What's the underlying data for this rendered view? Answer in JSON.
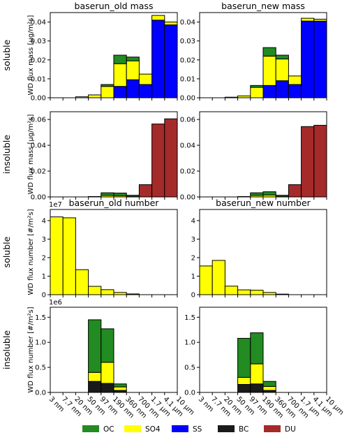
{
  "chart_data": {
    "type": "bar",
    "stacked": true,
    "x_tick_labels": [
      "3 nm",
      "7.7 nm",
      "20 nm",
      "50 nm",
      "97 nm",
      "190 nm",
      "360 nm",
      "700 nm",
      "1.7 μm",
      "4.1 μm",
      "10 μm"
    ],
    "colors": {
      "OC": "#228B22",
      "SO4": "#FFFF00",
      "SS": "#0000FF",
      "BC": "#1a1a1a",
      "DU": "#A52A2A"
    },
    "legend": [
      "OC",
      "SO4",
      "SS",
      "BC",
      "DU"
    ],
    "row_labels": [
      "soluble",
      "insoluble",
      "soluble",
      "insoluble"
    ],
    "panels": [
      {
        "id": "mass-sol-old",
        "title": "baserun_old mass",
        "row": 0,
        "col": 0,
        "ylabel": "WD flux mass [μg/m²s]",
        "ylim": [
          0,
          0.045
        ],
        "yticks": [
          0,
          0.01,
          0.02,
          0.03,
          0.04
        ],
        "yticklabels": [
          "0.00",
          "0.01",
          "0.02",
          "0.03",
          "0.04"
        ],
        "exponent": "",
        "order": [
          "SS",
          "SO4",
          "OC"
        ],
        "series": {
          "SS": [
            0,
            0,
            0,
            0,
            0,
            0.006,
            0.0095,
            0.007,
            0.041,
            0.0385
          ],
          "SO4": [
            0,
            0,
            0.0005,
            0.0015,
            0.006,
            0.012,
            0.01,
            0.0055,
            0.0025,
            0.0015
          ],
          "OC": [
            0,
            0,
            0,
            0,
            0.001,
            0.0045,
            0.002,
            0,
            0,
            0
          ]
        }
      },
      {
        "id": "mass-sol-new",
        "title": "baserun_new mass",
        "row": 0,
        "col": 1,
        "ylabel": "",
        "ylim": [
          0,
          0.045
        ],
        "yticks": [
          0,
          0.01,
          0.02,
          0.03,
          0.04
        ],
        "yticklabels": [
          "0.00",
          "0.01",
          "0.02",
          "0.03",
          "0.04"
        ],
        "exponent": "",
        "order": [
          "SS",
          "SO4",
          "OC"
        ],
        "series": {
          "SS": [
            0,
            0,
            0,
            0,
            0,
            0.0065,
            0.009,
            0.007,
            0.0405,
            0.0405
          ],
          "SO4": [
            0,
            0,
            0.0003,
            0.001,
            0.0055,
            0.0155,
            0.0115,
            0.0045,
            0.0015,
            0.001
          ],
          "OC": [
            0,
            0,
            0,
            0,
            0.001,
            0.0045,
            0.002,
            0,
            0,
            0
          ]
        }
      },
      {
        "id": "mass-ins-old",
        "title": "",
        "row": 1,
        "col": 0,
        "ylabel": "WD flux mass [μg/m²s]",
        "ylim": [
          0,
          0.066
        ],
        "yticks": [
          0,
          0.02,
          0.04,
          0.06
        ],
        "yticklabels": [
          "0.00",
          "0.02",
          "0.04",
          "0.06"
        ],
        "exponent": "",
        "order": [
          "BC",
          "SO4",
          "OC",
          "DU"
        ],
        "series": {
          "BC": [
            0,
            0,
            0,
            0,
            0,
            0,
            0,
            0,
            0,
            0
          ],
          "SO4": [
            0,
            0,
            0,
            0.0003,
            0.0012,
            0.001,
            0.0003,
            0,
            0,
            0
          ],
          "OC": [
            0,
            0,
            0,
            0,
            0.002,
            0.002,
            0.001,
            0,
            0,
            0
          ],
          "DU": [
            0,
            0,
            0,
            0,
            0,
            0,
            0,
            0.0095,
            0.0565,
            0.0605
          ]
        }
      },
      {
        "id": "mass-ins-new",
        "title": "",
        "row": 1,
        "col": 1,
        "ylabel": "",
        "ylim": [
          0,
          0.066
        ],
        "yticks": [
          0,
          0.02,
          0.04,
          0.06
        ],
        "yticklabels": [
          "0.00",
          "0.02",
          "0.04",
          "0.06"
        ],
        "exponent": "",
        "order": [
          "BC",
          "SO4",
          "OC",
          "DU"
        ],
        "series": {
          "BC": [
            0,
            0,
            0,
            0,
            0,
            0,
            0,
            0,
            0,
            0
          ],
          "SO4": [
            0,
            0,
            0,
            0.0003,
            0.0012,
            0.0015,
            0.0003,
            0,
            0,
            0
          ],
          "OC": [
            0,
            0,
            0,
            0,
            0.002,
            0.0025,
            0.001,
            0,
            0,
            0
          ],
          "DU": [
            0,
            0,
            0,
            0,
            0,
            0,
            0,
            0.0095,
            0.0545,
            0.0555
          ]
        }
      },
      {
        "id": "num-sol-old",
        "title": "baserun_old number",
        "row": 2,
        "col": 0,
        "ylabel": "WD flux number [#/m²s]",
        "ylim": [
          0,
          46000000
        ],
        "yticks": [
          0,
          10000000,
          20000000,
          30000000,
          40000000
        ],
        "yticklabels": [
          "0",
          "1",
          "2",
          "3",
          "4"
        ],
        "exponent": "1e7",
        "order": [
          "SO4"
        ],
        "series": {
          "SO4": [
            42000000,
            41500000,
            13500000,
            4500000,
            2700000,
            1200000,
            400000,
            0,
            0,
            0
          ]
        }
      },
      {
        "id": "num-sol-new",
        "title": "baserun_new number",
        "row": 2,
        "col": 1,
        "ylabel": "",
        "ylim": [
          0,
          46000000
        ],
        "yticks": [
          0,
          10000000,
          20000000,
          30000000,
          40000000
        ],
        "yticklabels": [
          "0",
          "1",
          "2",
          "3",
          "4"
        ],
        "exponent": "",
        "order": [
          "SO4"
        ],
        "series": {
          "SO4": [
            15500000,
            18500000,
            4600000,
            2600000,
            2400000,
            1200000,
            300000,
            0,
            0,
            0
          ]
        }
      },
      {
        "id": "num-ins-old",
        "title": "",
        "row": 3,
        "col": 0,
        "ylabel": "WD flux number [#/m²s]",
        "ylim": [
          0,
          1700000
        ],
        "yticks": [
          0,
          500000,
          1000000,
          1500000
        ],
        "yticklabels": [
          "0.0",
          "0.5",
          "1.0",
          "1.5"
        ],
        "exponent": "1e6",
        "order": [
          "BC",
          "SO4",
          "OC"
        ],
        "series": {
          "BC": [
            0,
            0,
            0,
            220000,
            180000,
            40000,
            0,
            0,
            0,
            0
          ],
          "SO4": [
            0,
            0,
            0,
            180000,
            420000,
            70000,
            0,
            0,
            0,
            0
          ],
          "OC": [
            0,
            0,
            0,
            1050000,
            670000,
            60000,
            0,
            0,
            0,
            0
          ]
        }
      },
      {
        "id": "num-ins-new",
        "title": "",
        "row": 3,
        "col": 1,
        "ylabel": "",
        "ylim": [
          0,
          1700000
        ],
        "yticks": [
          0,
          500000,
          1000000,
          1500000
        ],
        "yticklabels": [
          "0.0",
          "0.5",
          "1.0",
          "1.5"
        ],
        "exponent": "",
        "order": [
          "BC",
          "SO4",
          "OC"
        ],
        "series": {
          "BC": [
            0,
            0,
            0,
            160000,
            170000,
            40000,
            0,
            0,
            0,
            0
          ],
          "SO4": [
            0,
            0,
            0,
            140000,
            400000,
            80000,
            0,
            0,
            0,
            0
          ],
          "OC": [
            0,
            0,
            0,
            780000,
            620000,
            100000,
            0,
            0,
            0,
            0
          ]
        }
      }
    ]
  }
}
